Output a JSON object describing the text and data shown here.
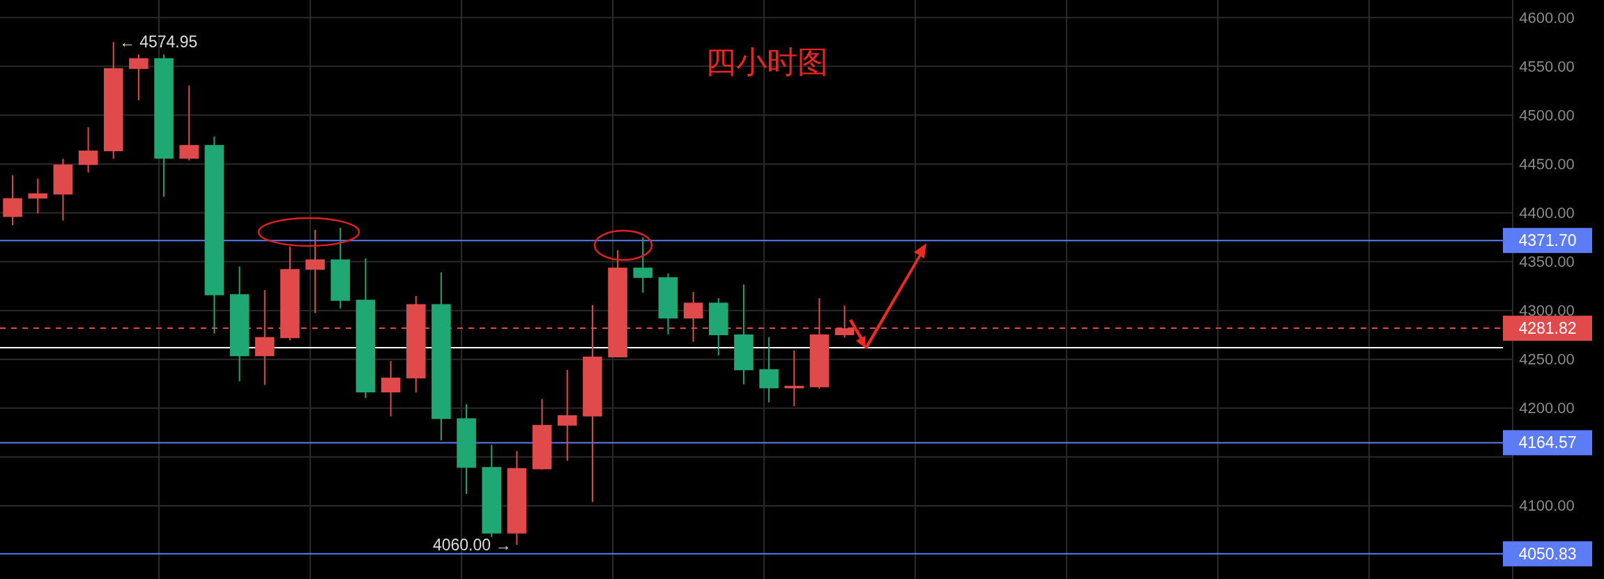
{
  "chart_data": {
    "type": "candlestick",
    "title": "四小时图",
    "categories": [
      null,
      null,
      null,
      null,
      null,
      null,
      null,
      null,
      null,
      null,
      null,
      null,
      null,
      null,
      null,
      null,
      null,
      null,
      null,
      null,
      null,
      null,
      null,
      null,
      null,
      null,
      null,
      null,
      null,
      null,
      null,
      null,
      null,
      null,
      null,
      null,
      null,
      null,
      null,
      null,
      null,
      null,
      null,
      null,
      null,
      null,
      null,
      null,
      null,
      null,
      null,
      null,
      null,
      null,
      null,
      null,
      null,
      null,
      null,
      null
    ],
    "ohlc": [
      [
        4395.8,
        4438.5,
        4387.4,
        4415.0
      ],
      [
        4414.7,
        4435.1,
        4399.5,
        4420.0
      ],
      [
        4418.8,
        4455.5,
        4392.0,
        4449.5
      ],
      [
        4449.1,
        4487.7,
        4441.2,
        4463.8
      ],
      [
        4463.1,
        4574.95,
        4455.5,
        4548.2
      ],
      [
        4547.4,
        4562.2,
        4515.3,
        4558.4
      ],
      [
        4558.4,
        4562.2,
        4416.6,
        4455.5
      ],
      [
        4455.5,
        4530.4,
        4453.6,
        4469.5
      ],
      [
        4469.5,
        4478.2,
        4276.6,
        4315.6
      ],
      [
        4316.7,
        4345.1,
        4227.5,
        4253.2
      ],
      [
        4253.2,
        4320.9,
        4223.7,
        4272.8
      ],
      [
        4271.7,
        4365.5,
        4269.4,
        4342.4
      ],
      [
        4341.7,
        4382.5,
        4297.4,
        4352.3
      ],
      [
        4352.3,
        4384.8,
        4302.0,
        4309.9
      ],
      [
        4311.0,
        4353.4,
        4210.4,
        4216.1
      ],
      [
        4216.1,
        4248.3,
        4191.5,
        4231.2
      ],
      [
        4230.5,
        4314.8,
        4216.1,
        4306.5
      ],
      [
        4306.5,
        4339.0,
        4166.9,
        4188.9
      ],
      [
        4189.6,
        4204.0,
        4112.1,
        4138.9
      ],
      [
        4139.7,
        4162.4,
        4067.9,
        4071.6
      ],
      [
        4071.6,
        4156.0,
        4060.0,
        4138.6
      ],
      [
        4137.4,
        4209.3,
        4137.0,
        4182.8
      ],
      [
        4182.1,
        4239.2,
        4146.1,
        4192.7
      ],
      [
        4191.5,
        4305.7,
        4103.8,
        4252.8
      ],
      [
        4252.0,
        4361.7,
        4252.0,
        4343.9
      ],
      [
        4343.9,
        4374.9,
        4318.2,
        4333.4
      ],
      [
        4334.1,
        4337.9,
        4275.5,
        4291.8
      ],
      [
        4291.8,
        4319.0,
        4267.9,
        4308.0
      ],
      [
        4308.0,
        4312.6,
        4253.9,
        4274.7
      ],
      [
        4275.5,
        4326.6,
        4224.4,
        4238.8
      ],
      [
        4239.9,
        4272.8,
        4205.9,
        4220.3
      ],
      [
        4220.3,
        4258.9,
        4202.1,
        4222.9
      ],
      [
        4221.4,
        4312.6,
        4219.9,
        4275.5
      ],
      [
        4274.7,
        4305.0,
        4272.1,
        4281.82
      ],
      null,
      null,
      null,
      null,
      null,
      null,
      null,
      null,
      null,
      null,
      null,
      null,
      null,
      null,
      null,
      null,
      null,
      null,
      null,
      null,
      null,
      null,
      null,
      null,
      null,
      null
    ],
    "colors": [
      "#e04a4a",
      "#e04a4a",
      "#e04a4a",
      "#e04a4a",
      "#e04a4a",
      "#e04a4a",
      "#1fa774",
      "#e04a4a",
      "#1fa774",
      "#1fa774",
      "#e04a4a",
      "#e04a4a",
      "#e04a4a",
      "#1fa774",
      "#1fa774",
      "#e04a4a",
      "#e04a4a",
      "#1fa774",
      "#1fa774",
      "#1fa774",
      "#e04a4a",
      "#e04a4a",
      "#e04a4a",
      "#e04a4a",
      "#e04a4a",
      "#1fa774",
      "#1fa774",
      "#e04a4a",
      "#1fa774",
      "#1fa774",
      "#1fa774",
      "#e04a4a",
      "#e04a4a",
      "#e04a4a",
      null,
      null,
      null,
      null,
      null,
      null,
      null,
      null,
      null,
      null,
      null,
      null,
      null,
      null,
      null,
      null,
      null,
      null,
      null,
      null,
      null,
      null,
      null,
      null,
      null,
      null
    ],
    "ylim": [
      4025,
      4618
    ],
    "yticks": [
      {
        "value": 4100,
        "label": "4100.00"
      },
      {
        "value": 4150,
        "label": null
      },
      {
        "value": 4200,
        "label": "4200.00"
      },
      {
        "value": 4250,
        "label": "4250.00"
      },
      {
        "value": 4300,
        "label": "4300.00"
      },
      {
        "value": 4350,
        "label": "4350.00"
      },
      {
        "value": 4400,
        "label": "4400.00"
      },
      {
        "value": 4450,
        "label": "4450.00"
      },
      {
        "value": 4500,
        "label": "4500.00"
      },
      {
        "value": 4550,
        "label": "4550.00"
      },
      {
        "value": 4600,
        "label": "4600.00"
      }
    ],
    "grid": true,
    "ref_lines": [
      {
        "axis": "y",
        "value": 4262,
        "color": "#ffffff"
      },
      {
        "axis": "y",
        "value": 4371.7,
        "label": "4371.70",
        "color": "#5b7cf5"
      },
      {
        "axis": "y",
        "value": 4164.57,
        "label": "4164.57",
        "color": "#5b7cf5"
      },
      {
        "axis": "y",
        "value": 4050.83,
        "label": "4050.83",
        "color": "#5b7cf5"
      },
      {
        "axis": "y",
        "value": 4281.82,
        "label": "4281.82",
        "color": "#e04a4a",
        "line_style": "dashed"
      }
    ],
    "annotations": [
      "← 4574.95",
      "4060.00 →"
    ]
  }
}
